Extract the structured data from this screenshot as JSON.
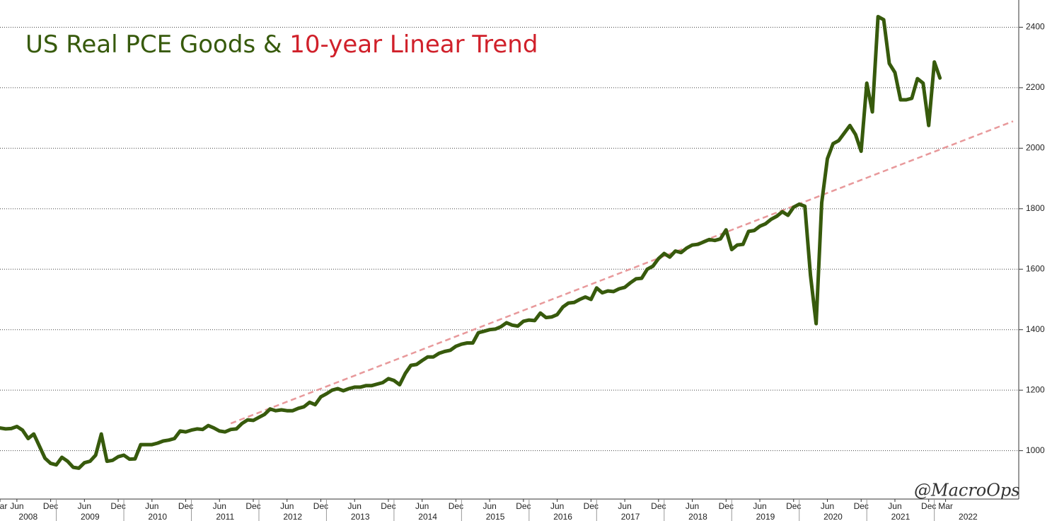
{
  "chart_data": {
    "type": "line",
    "title": "US Real PCE Goods & ",
    "title_trend": "10-year Linear Trend",
    "annotation": "@MacroOps",
    "series": [
      {
        "color": "#375a0c",
        "style": "solid",
        "x": [
          "2008-03",
          "2008-04",
          "2008-05",
          "2008-06",
          "2008-07",
          "2008-08",
          "2008-09",
          "2008-10",
          "2008-11",
          "2008-12",
          "2009-01",
          "2009-02",
          "2009-03",
          "2009-04",
          "2009-05",
          "2009-06",
          "2009-07",
          "2009-08",
          "2009-09",
          "2009-10",
          "2009-11",
          "2009-12",
          "2010-01",
          "2010-02",
          "2010-03",
          "2010-04",
          "2010-05",
          "2010-06",
          "2010-07",
          "2010-08",
          "2010-09",
          "2010-10",
          "2010-11",
          "2010-12",
          "2011-01",
          "2011-02",
          "2011-03",
          "2011-04",
          "2011-05",
          "2011-06",
          "2011-07",
          "2011-08",
          "2011-09",
          "2011-10",
          "2011-11",
          "2011-12",
          "2012-01",
          "2012-02",
          "2012-03",
          "2012-04",
          "2012-05",
          "2012-06",
          "2012-07",
          "2012-08",
          "2012-09",
          "2012-10",
          "2012-11",
          "2012-12",
          "2013-01",
          "2013-02",
          "2013-03",
          "2013-04",
          "2013-05",
          "2013-06",
          "2013-07",
          "2013-08",
          "2013-09",
          "2013-10",
          "2013-11",
          "2013-12",
          "2014-01",
          "2014-02",
          "2014-03",
          "2014-04",
          "2014-05",
          "2014-06",
          "2014-07",
          "2014-08",
          "2014-09",
          "2014-10",
          "2014-11",
          "2014-12",
          "2015-01",
          "2015-02",
          "2015-03",
          "2015-04",
          "2015-05",
          "2015-06",
          "2015-07",
          "2015-08",
          "2015-09",
          "2015-10",
          "2015-11",
          "2015-12",
          "2016-01",
          "2016-02",
          "2016-03",
          "2016-04",
          "2016-05",
          "2016-06",
          "2016-07",
          "2016-08",
          "2016-09",
          "2016-10",
          "2016-11",
          "2016-12",
          "2017-01",
          "2017-02",
          "2017-03",
          "2017-04",
          "2017-05",
          "2017-06",
          "2017-07",
          "2017-08",
          "2017-09",
          "2017-10",
          "2017-11",
          "2017-12",
          "2018-01",
          "2018-02",
          "2018-03",
          "2018-04",
          "2018-05",
          "2018-06",
          "2018-07",
          "2018-08",
          "2018-09",
          "2018-10",
          "2018-11",
          "2018-12",
          "2019-01",
          "2019-02",
          "2019-03",
          "2019-04",
          "2019-05",
          "2019-06",
          "2019-07",
          "2019-08",
          "2019-09",
          "2019-10",
          "2019-11",
          "2019-12",
          "2020-01",
          "2020-02",
          "2020-03",
          "2020-04",
          "2020-05",
          "2020-06",
          "2020-07",
          "2020-08",
          "2020-09",
          "2020-10",
          "2020-11",
          "2020-12",
          "2021-01",
          "2021-02",
          "2021-03",
          "2021-04",
          "2021-05",
          "2021-06",
          "2021-07",
          "2021-08",
          "2021-09",
          "2021-10",
          "2021-11",
          "2021-12",
          "2022-01",
          "2022-02"
        ],
        "values": [
          1075,
          1072,
          1073,
          1080,
          1068,
          1040,
          1055,
          1015,
          975,
          958,
          953,
          978,
          965,
          945,
          942,
          960,
          965,
          985,
          1055,
          965,
          968,
          980,
          985,
          972,
          973,
          1020,
          1020,
          1020,
          1025,
          1032,
          1035,
          1040,
          1065,
          1062,
          1068,
          1072,
          1070,
          1083,
          1075,
          1065,
          1062,
          1070,
          1072,
          1090,
          1102,
          1100,
          1110,
          1120,
          1138,
          1132,
          1135,
          1132,
          1132,
          1140,
          1145,
          1160,
          1152,
          1178,
          1188,
          1200,
          1205,
          1198,
          1205,
          1210,
          1210,
          1215,
          1215,
          1220,
          1225,
          1238,
          1232,
          1218,
          1255,
          1282,
          1285,
          1298,
          1310,
          1310,
          1322,
          1328,
          1332,
          1345,
          1352,
          1356,
          1356,
          1390,
          1395,
          1400,
          1402,
          1410,
          1423,
          1415,
          1412,
          1428,
          1432,
          1430,
          1455,
          1440,
          1442,
          1450,
          1475,
          1488,
          1490,
          1500,
          1508,
          1500,
          1538,
          1522,
          1528,
          1526,
          1535,
          1540,
          1555,
          1568,
          1570,
          1600,
          1610,
          1635,
          1652,
          1640,
          1660,
          1655,
          1670,
          1680,
          1682,
          1690,
          1698,
          1695,
          1700,
          1730,
          1665,
          1680,
          1682,
          1725,
          1728,
          1742,
          1750,
          1765,
          1775,
          1790,
          1778,
          1805,
          1815,
          1808,
          1580,
          1420,
          1820,
          1965,
          2015,
          2025,
          2050,
          2075,
          2045,
          1990,
          2215,
          2120,
          2435,
          2425,
          2280,
          2250,
          2160,
          2160,
          2165,
          2230,
          2215,
          2075,
          2285,
          2232
        ]
      },
      {
        "color": "#e8999b",
        "style": "dashed",
        "x": [
          "2011-08",
          "2023-03"
        ],
        "values": [
          1090,
          2089
        ]
      }
    ],
    "xlim": [
      "2008-03",
      "2023-04"
    ],
    "ylim": [
      840,
      2490
    ],
    "yticks": [
      1000,
      1200,
      1400,
      1600,
      1800,
      2000,
      2200,
      2400
    ],
    "xticks": [
      {
        "value": "2008-03",
        "label": "Mar"
      },
      {
        "value": "2008-06",
        "label": "Jun"
      },
      {
        "value": "2008-12",
        "label": "Dec"
      },
      {
        "value": "2009-06",
        "label": "Jun"
      },
      {
        "value": "2009-12",
        "label": "Dec"
      },
      {
        "value": "2010-06",
        "label": "Jun"
      },
      {
        "value": "2010-12",
        "label": "Dec"
      },
      {
        "value": "2011-06",
        "label": "Jun"
      },
      {
        "value": "2011-12",
        "label": "Dec"
      },
      {
        "value": "2012-06",
        "label": "Jun"
      },
      {
        "value": "2012-12",
        "label": "Dec"
      },
      {
        "value": "2013-06",
        "label": "Jun"
      },
      {
        "value": "2013-12",
        "label": "Dec"
      },
      {
        "value": "2014-06",
        "label": "Jun"
      },
      {
        "value": "2014-12",
        "label": "Dec"
      },
      {
        "value": "2015-06",
        "label": "Jun"
      },
      {
        "value": "2015-12",
        "label": "Dec"
      },
      {
        "value": "2016-06",
        "label": "Jun"
      },
      {
        "value": "2016-12",
        "label": "Dec"
      },
      {
        "value": "2017-06",
        "label": "Jun"
      },
      {
        "value": "2017-12",
        "label": "Dec"
      },
      {
        "value": "2018-06",
        "label": "Jun"
      },
      {
        "value": "2018-12",
        "label": "Dec"
      },
      {
        "value": "2019-06",
        "label": "Jun"
      },
      {
        "value": "2019-12",
        "label": "Dec"
      },
      {
        "value": "2020-06",
        "label": "Jun"
      },
      {
        "value": "2020-12",
        "label": "Dec"
      },
      {
        "value": "2021-06",
        "label": "Jun"
      },
      {
        "value": "2021-12",
        "label": "Dec"
      },
      {
        "value": "2022-03",
        "label": "Mar"
      }
    ],
    "years": [
      2008,
      2009,
      2010,
      2011,
      2012,
      2013,
      2014,
      2015,
      2016,
      2017,
      2018,
      2019,
      2020,
      2021,
      2022
    ],
    "grid": true,
    "y_axis_side": "right"
  }
}
